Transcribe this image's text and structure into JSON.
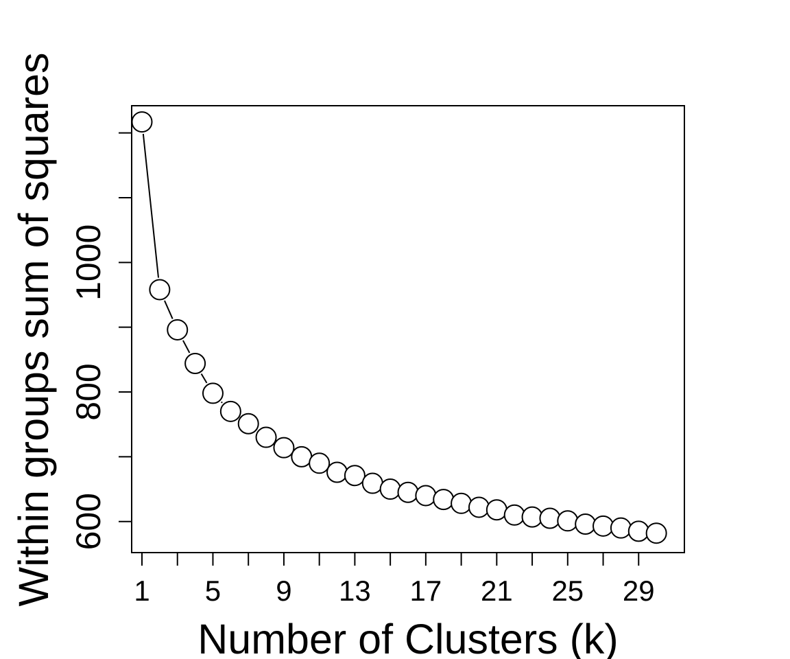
{
  "chart_data": {
    "type": "line",
    "title": "",
    "xlabel": "Number of Clusters (k)",
    "ylabel": "Within groups sum of squares",
    "x": [
      1,
      2,
      3,
      4,
      5,
      6,
      7,
      8,
      9,
      10,
      11,
      12,
      13,
      14,
      15,
      16,
      17,
      18,
      19,
      20,
      21,
      22,
      23,
      24,
      25,
      26,
      27,
      28,
      29,
      30
    ],
    "series": [
      {
        "values": [
          1217,
          958,
          896,
          844,
          798,
          770,
          751,
          730,
          714,
          700,
          690,
          676,
          671,
          659,
          650,
          645,
          640,
          634,
          628,
          622,
          618,
          610,
          607,
          605,
          601,
          596,
          593,
          590,
          585,
          582
        ]
      }
    ],
    "xlim": [
      0.42,
      31.58
    ],
    "ylim": [
      552,
      1242
    ],
    "x_ticks": [
      1,
      3,
      5,
      7,
      9,
      11,
      13,
      15,
      17,
      19,
      21,
      23,
      25,
      27,
      29
    ],
    "x_tick_labels": [
      "1",
      "5",
      "9",
      "13",
      "17",
      "21",
      "25",
      "29"
    ],
    "x_tick_label_values": [
      1,
      5,
      9,
      13,
      17,
      21,
      25,
      29
    ],
    "y_ticks": [
      600,
      700,
      800,
      900,
      1000,
      1100,
      1200
    ],
    "y_tick_labels": [
      "600",
      "800",
      "1000"
    ],
    "y_tick_label_values": [
      600,
      800,
      1000
    ],
    "marker": "open-circle",
    "line_color": "#000000",
    "grid": false,
    "legend": "none"
  }
}
